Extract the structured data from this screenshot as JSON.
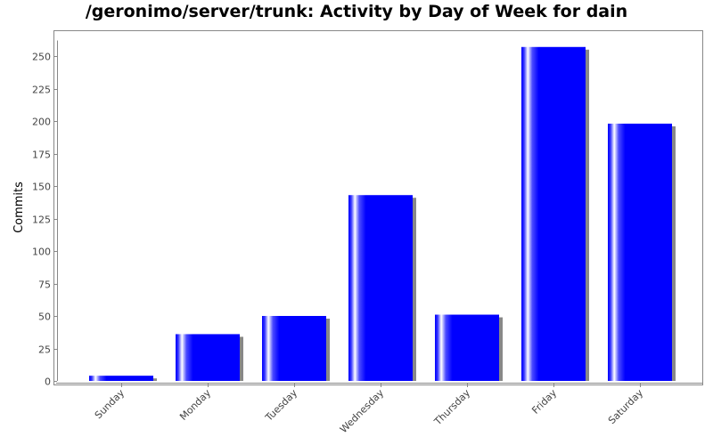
{
  "chart_data": {
    "type": "bar",
    "title": "/geronimo/server/trunk: Activity by Day of Week for dain",
    "xlabel": "",
    "ylabel": "Commits",
    "categories": [
      "Sunday",
      "Monday",
      "Tuesday",
      "Wednesday",
      "Thursday",
      "Friday",
      "Saturday"
    ],
    "values": [
      4,
      36,
      50,
      143,
      51,
      257,
      198
    ],
    "ylim": [
      0,
      262
    ],
    "yticks": [
      0,
      25,
      50,
      75,
      100,
      125,
      150,
      175,
      200,
      225,
      250
    ],
    "grid": false,
    "legend": "none",
    "colors": {
      "bar": "#0000ff",
      "bar_highlight": "#ffffff",
      "shadow": "#888888",
      "axis": "#888888",
      "frame": "#888888"
    }
  }
}
